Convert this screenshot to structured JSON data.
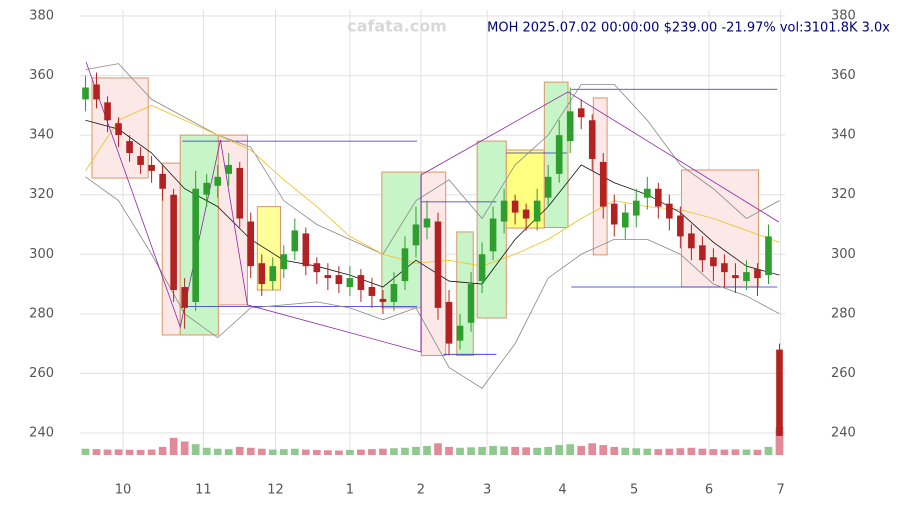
{
  "chart_data": {
    "type": "candlestick",
    "watermark": "cafata.com",
    "title": "MOH 2025.07.02 00:00:00 $239.00 -21.97% vol:3101.8K 3.0x",
    "xlim": [
      0,
      64
    ],
    "xticks": [
      {
        "value": 3.9,
        "label": "10"
      },
      {
        "value": 11.2,
        "label": "11"
      },
      {
        "value": 17.75,
        "label": "12"
      },
      {
        "value": 24.5,
        "label": "1"
      },
      {
        "value": 30.95,
        "label": "2"
      },
      {
        "value": 36.96,
        "label": "3"
      },
      {
        "value": 43.8,
        "label": "4"
      },
      {
        "value": 50.3,
        "label": "5"
      },
      {
        "value": 57.1,
        "label": "6"
      },
      {
        "value": 63.6,
        "label": "7"
      }
    ],
    "ylim": [
      232.6,
      380
    ],
    "yticks": [
      240,
      260,
      280,
      300,
      320,
      340,
      360,
      380
    ],
    "grid": true,
    "up_color": "#2e9e2e",
    "down_color": "#b22222",
    "last_color": "#1530b0",
    "open": [
      352,
      357,
      351,
      344,
      338,
      333,
      330,
      327,
      320,
      289,
      284,
      320,
      323,
      327,
      329,
      311,
      297,
      291,
      295,
      301,
      307,
      297,
      293,
      293,
      289,
      293,
      289,
      285,
      284,
      291,
      303,
      309,
      311,
      284,
      271,
      277,
      291,
      301,
      311,
      318,
      315,
      311,
      319,
      327,
      338,
      349,
      345,
      331,
      317,
      309,
      313,
      319,
      322,
      317,
      313,
      307,
      303,
      299,
      297,
      293,
      291,
      295,
      293,
      268
    ],
    "high": [
      360,
      361,
      353,
      346,
      340,
      336,
      333,
      330,
      322,
      292,
      328,
      327,
      330,
      334,
      331,
      314,
      300,
      299,
      303,
      312,
      309,
      299,
      297,
      296,
      296,
      295,
      292,
      288,
      294,
      306,
      316,
      318,
      314,
      288,
      280,
      294,
      304,
      316,
      322,
      320,
      317,
      322,
      330,
      345,
      356,
      352,
      347,
      334,
      320,
      317,
      322,
      326,
      324,
      320,
      316,
      310,
      306,
      302,
      300,
      297,
      298,
      297,
      310,
      270
    ],
    "low": [
      348,
      349,
      341,
      336,
      331,
      327,
      324,
      318,
      284,
      275,
      281,
      316,
      319,
      323,
      309,
      292,
      286,
      288,
      292,
      298,
      293,
      290,
      288,
      287,
      286,
      284,
      282,
      280,
      281,
      288,
      299,
      305,
      278,
      266,
      268,
      274,
      287,
      298,
      307,
      310,
      308,
      308,
      316,
      324,
      334,
      342,
      328,
      312,
      306,
      305,
      309,
      315,
      312,
      308,
      302,
      298,
      294,
      291,
      289,
      287,
      288,
      286,
      290,
      239
    ],
    "close": [
      356,
      352,
      345,
      340,
      334,
      330,
      328,
      322,
      288,
      282,
      322,
      324,
      326,
      330,
      312,
      296,
      290,
      296,
      300,
      308,
      296,
      294,
      292,
      290,
      292,
      288,
      286,
      284,
      290,
      302,
      310,
      312,
      282,
      270,
      276,
      290,
      300,
      312,
      318,
      314,
      312,
      318,
      326,
      340,
      348,
      346,
      332,
      316,
      310,
      314,
      318,
      322,
      316,
      312,
      306,
      302,
      298,
      296,
      294,
      292,
      294,
      292,
      306,
      239
    ],
    "volume": [
      700,
      650,
      600,
      620,
      580,
      560,
      600,
      900,
      1900,
      1500,
      1200,
      800,
      700,
      650,
      900,
      800,
      700,
      600,
      650,
      700,
      600,
      550,
      520,
      500,
      560,
      600,
      650,
      700,
      750,
      800,
      900,
      1000,
      1300,
      900,
      800,
      850,
      900,
      1000,
      950,
      900,
      850,
      800,
      900,
      1100,
      1200,
      1000,
      1300,
      1100,
      900,
      800,
      750,
      700,
      650,
      700,
      750,
      800,
      700,
      650,
      600,
      620,
      600,
      580,
      900,
      3101.8
    ],
    "lines": [
      {
        "color": "#888888",
        "x": [
          0.5,
          3.5,
          6.5,
          9.5,
          12.5,
          15.5,
          18.5,
          21.5,
          24.5,
          27.5,
          30.5,
          33.5,
          36.5,
          39.5,
          42.5,
          45.5,
          48.5,
          51.5,
          54.5,
          57.5,
          60.5,
          63.5
        ],
        "values": [
          362,
          364,
          352,
          346,
          340,
          336,
          318,
          310,
          305,
          300,
          318,
          325,
          312,
          330,
          340,
          357,
          357,
          345,
          330,
          322,
          312,
          318
        ]
      },
      {
        "color": "#888888",
        "x": [
          0.5,
          3.5,
          6.5,
          9.5,
          12.5,
          15.5,
          18.5,
          21.5,
          24.5,
          27.5,
          30.5,
          33.5,
          36.5,
          39.5,
          42.5,
          45.5,
          48.5,
          51.5,
          54.5,
          57.5,
          60.5,
          63.5
        ],
        "values": [
          326,
          318,
          300,
          280,
          272,
          282,
          283,
          284,
          282,
          278,
          282,
          262,
          255,
          270,
          292,
          300,
          305,
          305,
          300,
          290,
          286,
          280
        ]
      },
      {
        "color": "#f0c020",
        "x": [
          0.5,
          3.5,
          6.5,
          9.5,
          12.5,
          15.5,
          18.5,
          21.5,
          24.5,
          27.5,
          30.5,
          33.5,
          36.5,
          39.5,
          42.5,
          45.5,
          48.5,
          51.5,
          54.5,
          57.5,
          60.5,
          63.5
        ],
        "values": [
          328,
          345,
          350,
          345,
          340,
          335,
          325,
          316,
          306,
          300,
          297,
          298,
          296,
          300,
          305,
          312,
          318,
          316,
          315,
          312,
          308,
          304
        ]
      },
      {
        "color": "#111111",
        "x": [
          0.5,
          3.5,
          6.5,
          9.5,
          12.5,
          15.5,
          18.5,
          21.5,
          24.5,
          27.5,
          30.5,
          33.5,
          36.5,
          39.5,
          42.5,
          45.5,
          48.5,
          51.5,
          54.5,
          57.5,
          60.5,
          63.5
        ],
        "values": [
          345,
          342,
          334,
          322,
          316,
          305,
          298,
          296,
          293,
          289,
          298,
          291,
          290,
          305,
          316,
          330,
          324,
          320,
          314,
          304,
          296,
          293
        ]
      },
      {
        "color": "#8e24aa",
        "x": [
          0.55,
          9.1,
          12.75,
          15.2,
          30.95,
          30.95,
          44.3,
          63.45
        ],
        "values": [
          364.6,
          275.6,
          338.4,
          283,
          267.2,
          326.6,
          354.5,
          310.8
        ]
      }
    ],
    "boxes": [
      {
        "x": [
          1.09,
          6.19
        ],
        "y": [
          325.6,
          359.2
        ],
        "fill": "#fde8e8",
        "stroke": "#d9966a"
      },
      {
        "x": [
          7.47,
          9.1
        ],
        "y": [
          272.9,
          330.6
        ],
        "fill": "#fde8e8",
        "stroke": "#d9966a"
      },
      {
        "x": [
          9.1,
          12.56
        ],
        "y": [
          272.9,
          340
        ],
        "fill": "#c8f5c8",
        "stroke": "#d9966a"
      },
      {
        "x": [
          12.56,
          15.2
        ],
        "y": [
          283,
          340
        ],
        "fill": "#fde8e8",
        "stroke": "#d9966a"
      },
      {
        "x": [
          16.1,
          18.2
        ],
        "y": [
          288,
          316
        ],
        "fill": "#ffff99",
        "stroke": "#d9966a"
      },
      {
        "x": [
          27.4,
          31
        ],
        "y": [
          282,
          327.6
        ],
        "fill": "#c8f5c8",
        "stroke": "#d9966a"
      },
      {
        "x": [
          31,
          33.2
        ],
        "y": [
          266,
          327.6
        ],
        "fill": "#fde8e8",
        "stroke": "#d9966a"
      },
      {
        "x": [
          34.2,
          35.7
        ],
        "y": [
          266,
          307.5
        ],
        "fill": "#c8f5c8",
        "stroke": "#d9966a"
      },
      {
        "x": [
          36.05,
          38.7
        ],
        "y": [
          278.6,
          338
        ],
        "fill": "#c8f5c8",
        "stroke": "#d9966a"
      },
      {
        "x": [
          38.7,
          42.15
        ],
        "y": [
          308.8,
          335
        ],
        "fill": "#ffff80",
        "stroke": "#d9966a"
      },
      {
        "x": [
          42.15,
          44.3
        ],
        "y": [
          309,
          357.8
        ],
        "fill": "#c8f5c8",
        "stroke": "#d9966a"
      },
      {
        "x": [
          46.6,
          47.85
        ],
        "y": [
          299.8,
          352.5
        ],
        "fill": "#fde8e8",
        "stroke": "#d9966a"
      },
      {
        "x": [
          54.6,
          61.6
        ],
        "y": [
          289,
          328.3
        ],
        "fill": "#fde8e8",
        "stroke": "#d9966a"
      }
    ],
    "levels": [
      {
        "x": [
          9.3,
          30.6
        ],
        "y": 338
      },
      {
        "x": [
          9.3,
          30.6
        ],
        "y": 282.5
      },
      {
        "x": [
          31,
          37.8
        ],
        "y": 317.6
      },
      {
        "x": [
          33,
          37.8
        ],
        "y": 266.4
      },
      {
        "x": [
          38.7,
          44.2
        ],
        "y": 334
      },
      {
        "x": [
          44.6,
          63.3
        ],
        "y": 355.4
      },
      {
        "x": [
          44.6,
          63.3
        ],
        "y": 289
      }
    ],
    "level_color": "#2a2ad0"
  }
}
